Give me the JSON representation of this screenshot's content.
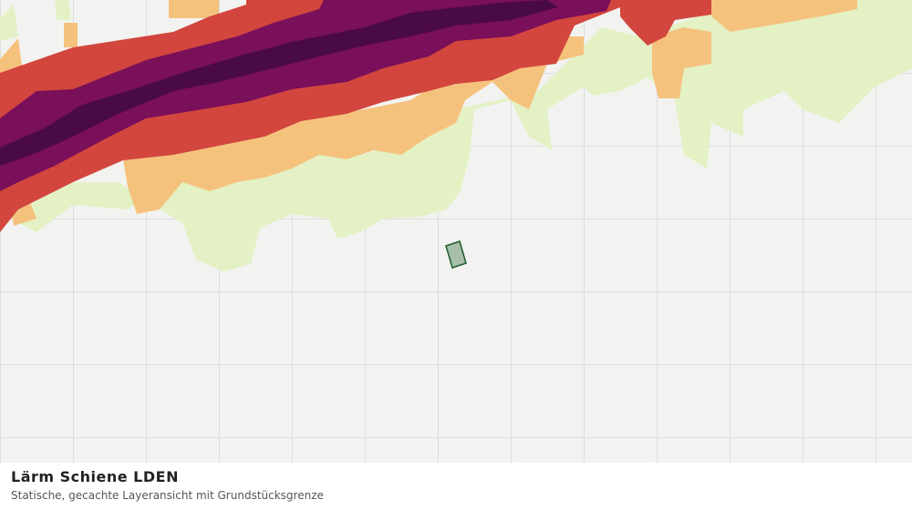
{
  "legend_panel": {
    "title": "Lärm Schiene LDEN",
    "subtitle": "Statische, gecachte Layeransicht mit Grundstücksgrenze"
  }
}
